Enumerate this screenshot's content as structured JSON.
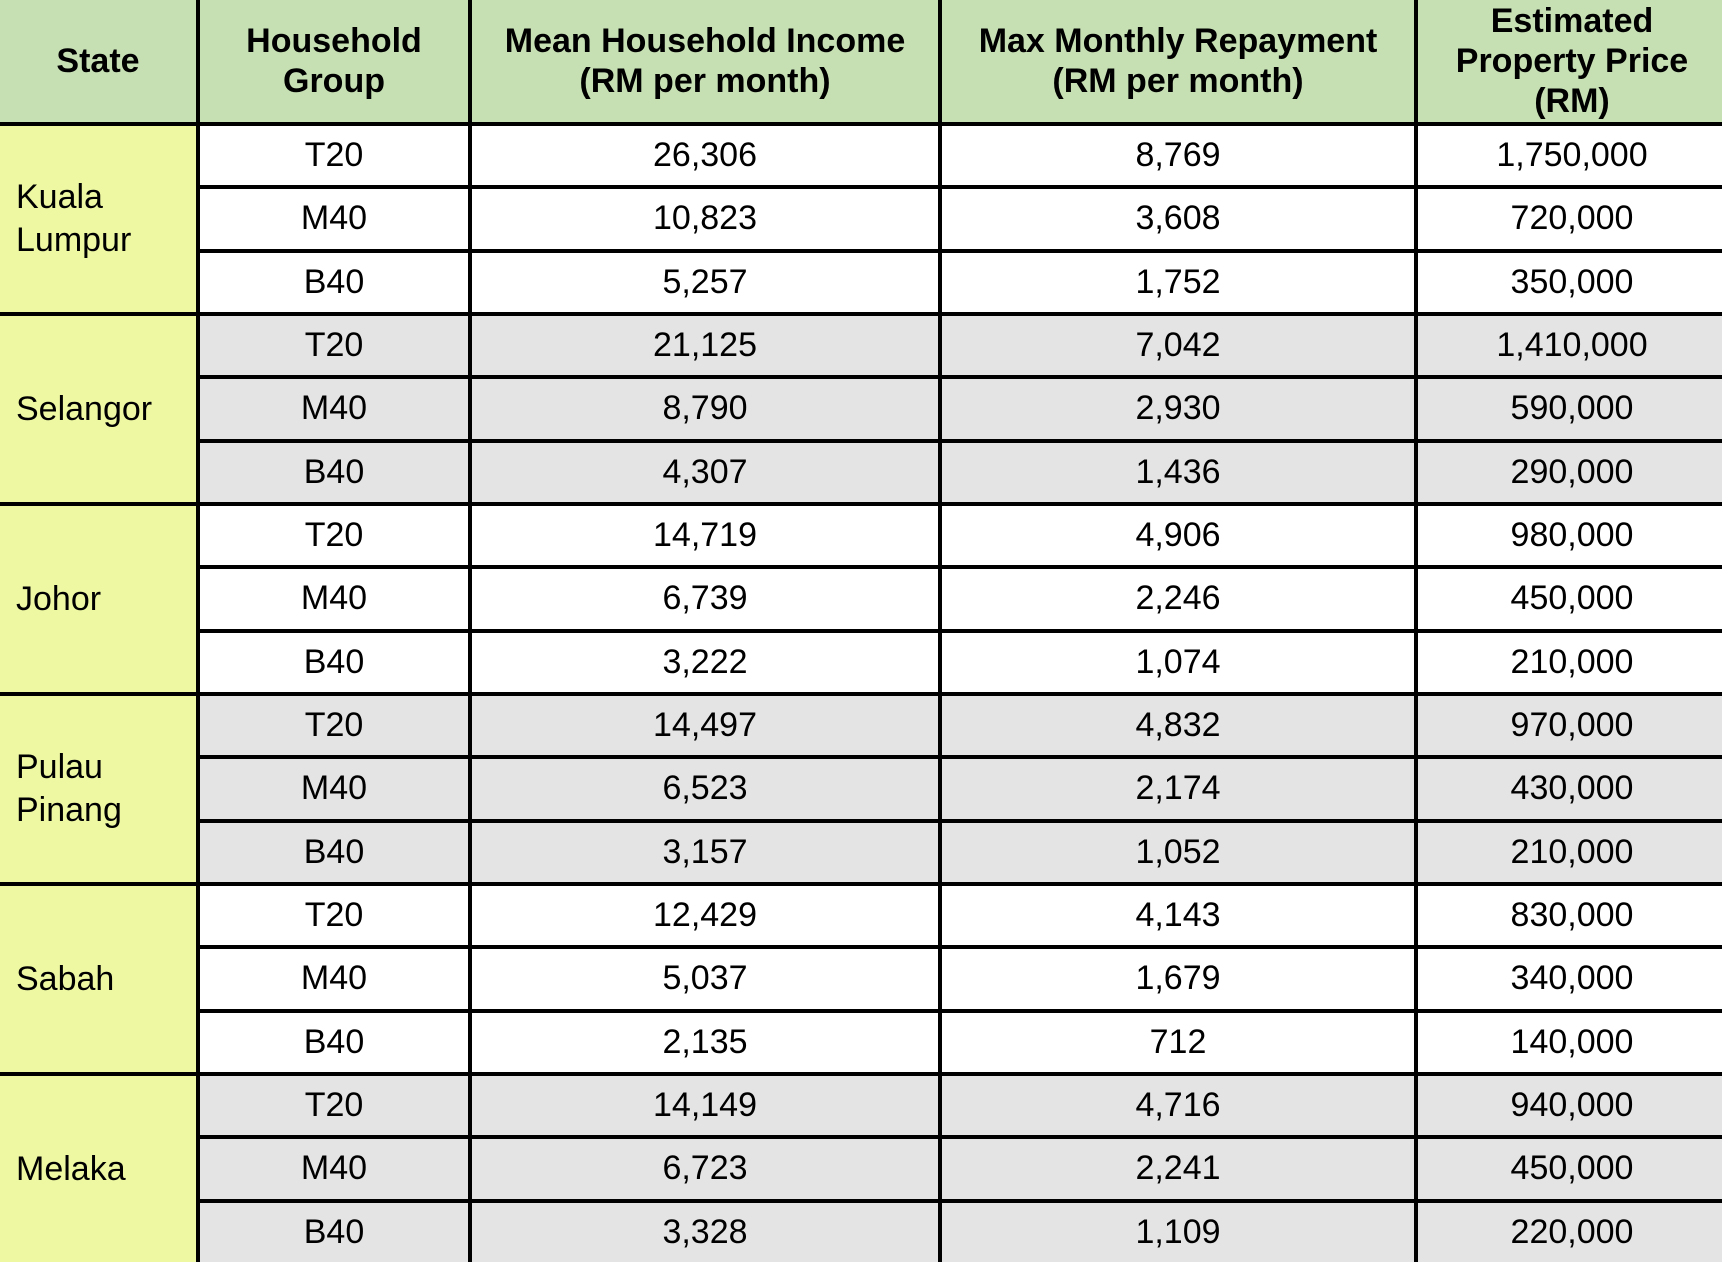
{
  "colors": {
    "header_bg": "#c6e0b4",
    "state_column_bg": "#eef8a3",
    "shaded_row_bg": "#e4e4e4",
    "plain_row_bg": "#ffffff",
    "border": "#000000",
    "text": "#000000"
  },
  "table": {
    "headers": [
      {
        "label": "State"
      },
      {
        "label": "Household\nGroup"
      },
      {
        "label": "Mean Household Income\n(RM per month)"
      },
      {
        "label": "Max Monthly Repayment\n(RM per month)"
      },
      {
        "label": "Estimated\nProperty Price\n(RM)"
      }
    ],
    "groups": [
      {
        "state": "Kuala\nLumpur",
        "shaded": false,
        "rows": [
          {
            "group": "T20",
            "income": "26,306",
            "repayment": "8,769",
            "price": "1,750,000"
          },
          {
            "group": "M40",
            "income": "10,823",
            "repayment": "3,608",
            "price": "720,000"
          },
          {
            "group": "B40",
            "income": "5,257",
            "repayment": "1,752",
            "price": "350,000"
          }
        ]
      },
      {
        "state": "Selangor",
        "shaded": true,
        "rows": [
          {
            "group": "T20",
            "income": "21,125",
            "repayment": "7,042",
            "price": "1,410,000"
          },
          {
            "group": "M40",
            "income": "8,790",
            "repayment": "2,930",
            "price": "590,000"
          },
          {
            "group": "B40",
            "income": "4,307",
            "repayment": "1,436",
            "price": "290,000"
          }
        ]
      },
      {
        "state": "Johor",
        "shaded": false,
        "rows": [
          {
            "group": "T20",
            "income": "14,719",
            "repayment": "4,906",
            "price": "980,000"
          },
          {
            "group": "M40",
            "income": "6,739",
            "repayment": "2,246",
            "price": "450,000"
          },
          {
            "group": "B40",
            "income": "3,222",
            "repayment": "1,074",
            "price": "210,000"
          }
        ]
      },
      {
        "state": "Pulau\nPinang",
        "shaded": true,
        "rows": [
          {
            "group": "T20",
            "income": "14,497",
            "repayment": "4,832",
            "price": "970,000"
          },
          {
            "group": "M40",
            "income": "6,523",
            "repayment": "2,174",
            "price": "430,000"
          },
          {
            "group": "B40",
            "income": "3,157",
            "repayment": "1,052",
            "price": "210,000"
          }
        ]
      },
      {
        "state": "Sabah",
        "shaded": false,
        "rows": [
          {
            "group": "T20",
            "income": "12,429",
            "repayment": "4,143",
            "price": "830,000"
          },
          {
            "group": "M40",
            "income": "5,037",
            "repayment": "1,679",
            "price": "340,000"
          },
          {
            "group": "B40",
            "income": "2,135",
            "repayment": "712",
            "price": "140,000"
          }
        ]
      },
      {
        "state": "Melaka",
        "shaded": true,
        "rows": [
          {
            "group": "T20",
            "income": "14,149",
            "repayment": "4,716",
            "price": "940,000"
          },
          {
            "group": "M40",
            "income": "6,723",
            "repayment": "2,241",
            "price": "450,000"
          },
          {
            "group": "B40",
            "income": "3,328",
            "repayment": "1,109",
            "price": "220,000"
          }
        ]
      }
    ]
  },
  "chart_data": {
    "type": "table",
    "columns": [
      "State",
      "Household Group",
      "Mean Household Income (RM per month)",
      "Max Monthly Repayment (RM per month)",
      "Estimated Property Price (RM)"
    ],
    "rows": [
      [
        "Kuala Lumpur",
        "T20",
        26306,
        8769,
        1750000
      ],
      [
        "Kuala Lumpur",
        "M40",
        10823,
        3608,
        720000
      ],
      [
        "Kuala Lumpur",
        "B40",
        5257,
        1752,
        350000
      ],
      [
        "Selangor",
        "T20",
        21125,
        7042,
        1410000
      ],
      [
        "Selangor",
        "M40",
        8790,
        2930,
        590000
      ],
      [
        "Selangor",
        "B40",
        4307,
        1436,
        290000
      ],
      [
        "Johor",
        "T20",
        14719,
        4906,
        980000
      ],
      [
        "Johor",
        "M40",
        6739,
        2246,
        450000
      ],
      [
        "Johor",
        "B40",
        3222,
        1074,
        210000
      ],
      [
        "Pulau Pinang",
        "T20",
        14497,
        4832,
        970000
      ],
      [
        "Pulau Pinang",
        "M40",
        6523,
        2174,
        430000
      ],
      [
        "Pulau Pinang",
        "B40",
        3157,
        1052,
        210000
      ],
      [
        "Sabah",
        "T20",
        12429,
        4143,
        830000
      ],
      [
        "Sabah",
        "M40",
        5037,
        1679,
        340000
      ],
      [
        "Sabah",
        "B40",
        2135,
        712,
        140000
      ],
      [
        "Melaka",
        "T20",
        14149,
        4716,
        940000
      ],
      [
        "Melaka",
        "M40",
        6723,
        2241,
        450000
      ],
      [
        "Melaka",
        "B40",
        3328,
        1109,
        220000
      ]
    ]
  }
}
